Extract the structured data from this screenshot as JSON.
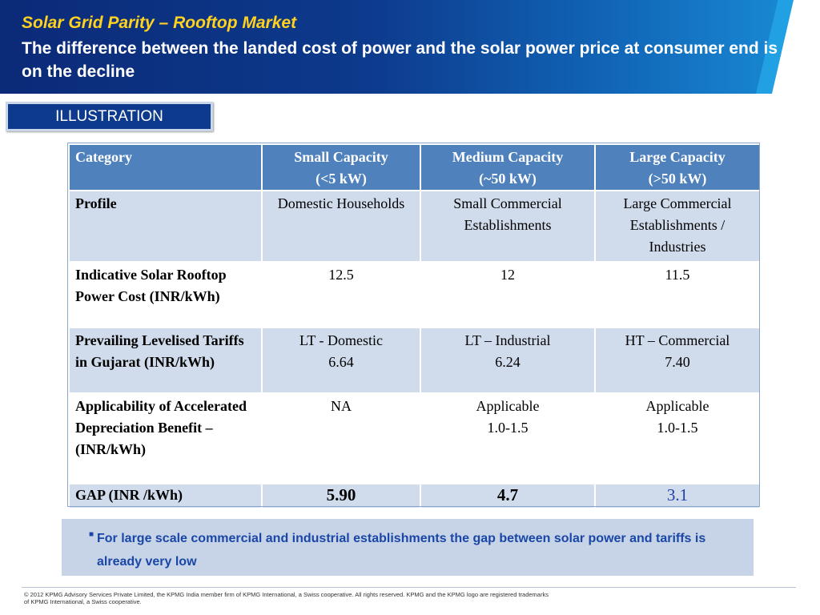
{
  "header": {
    "title": "Solar Grid Parity –  Rooftop Market",
    "subtitle": "The difference between the landed cost of power  and the solar power price at consumer end is on the decline"
  },
  "badge": {
    "label": "ILLUSTRATION"
  },
  "table": {
    "headers": [
      {
        "line1": "Category",
        "line2": ""
      },
      {
        "line1": "Small Capacity",
        "line2": "(<5 kW)"
      },
      {
        "line1": "Medium Capacity",
        "line2": "(~50 kW)"
      },
      {
        "line1": "Large Capacity",
        "line2": "(>50 kW)"
      }
    ],
    "rows": [
      {
        "label": "Profile",
        "cells": [
          "Domestic Households",
          "Small Commercial Establishments",
          "Large Commercial Establishments / Industries"
        ]
      },
      {
        "label": "Indicative Solar Rooftop Power Cost (INR/kWh)",
        "cells": [
          "12.5",
          "12",
          "11.5"
        ]
      },
      {
        "label": "Prevailing Levelised Tariffs in Gujarat (INR/kWh)",
        "cells": [
          {
            "line1": "LT  - Domestic",
            "line2": "6.64"
          },
          {
            "line1": "LT  – Industrial",
            "line2": "6.24"
          },
          {
            "line1": "HT  – Commercial",
            "line2": "7.40"
          }
        ]
      },
      {
        "label": "Applicability of Accelerated Depreciation Benefit – (INR/kWh)",
        "cells": [
          {
            "line1": "NA",
            "line2": ""
          },
          {
            "line1": "Applicable",
            "line2": "1.0-1.5"
          },
          {
            "line1": "Applicable",
            "line2": "1.0-1.5"
          }
        ]
      },
      {
        "label": "GAP (INR /kWh)",
        "cells": [
          "5.90",
          "4.7",
          "3.1"
        ]
      }
    ]
  },
  "note": {
    "text": "For large scale commercial and industrial establishments the gap between solar power and tariffs is already very low"
  },
  "footer": {
    "text": "© 2012 KPMG Advisory Services Private Limited, the KPMG India member firm of KPMG International, a Swiss cooperative. All rights reserved. KPMG and the KPMG logo are registered trademarks of KPMG International, a Swiss cooperative."
  }
}
